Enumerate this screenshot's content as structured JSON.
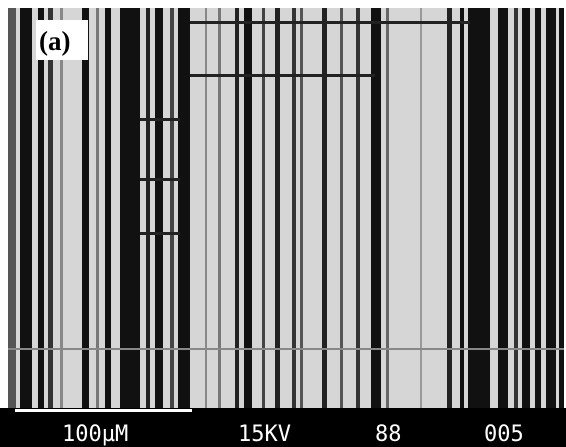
{
  "panel_label": "(a)",
  "info_bar": {
    "scale": "100µM",
    "voltage": "15KV",
    "magnification": "88",
    "image_number": "005"
  }
}
